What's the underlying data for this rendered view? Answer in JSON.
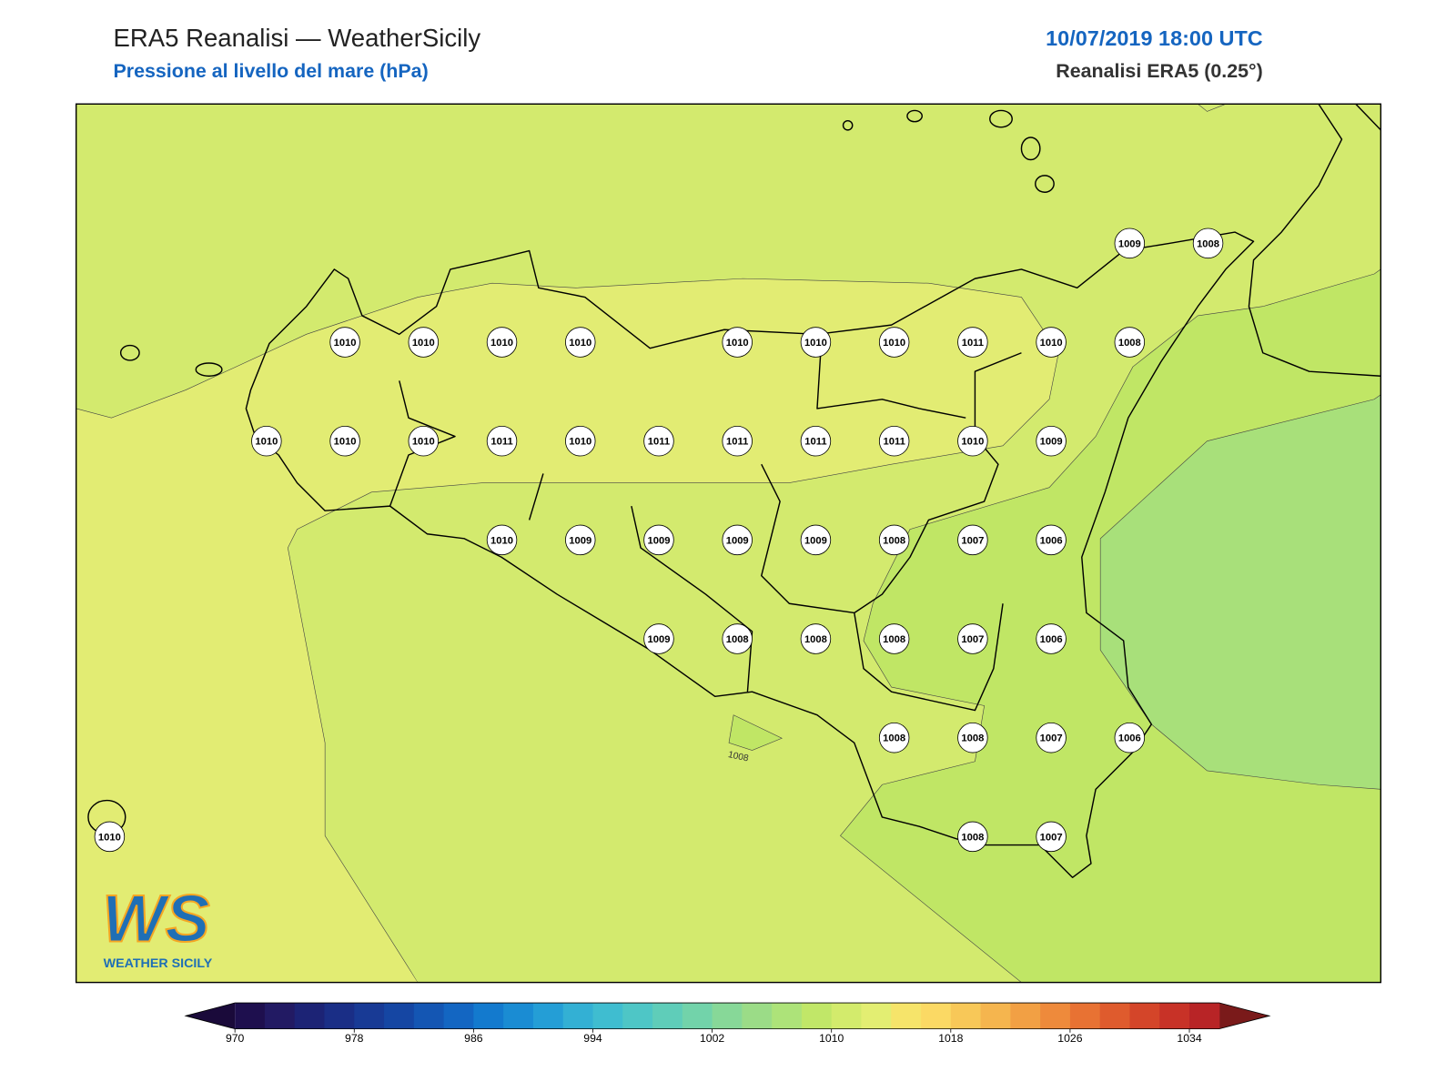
{
  "header": {
    "title": "ERA5 Reanalisi — WeatherSicily",
    "subtitle": "Pressione al livello del mare (hPa)",
    "date": "10/07/2019 18:00 UTC",
    "source": "Reanalisi ERA5 (0.25°)"
  },
  "map": {
    "grid": [
      [
        null,
        null,
        null,
        null,
        null,
        null,
        null,
        null,
        null,
        null,
        null,
        null,
        null,
        1009,
        1008
      ],
      [
        null,
        null,
        null,
        1010,
        1010,
        1010,
        1010,
        null,
        1010,
        1010,
        1010,
        1011,
        1010,
        1008,
        null
      ],
      [
        null,
        null,
        1010,
        1010,
        1010,
        1011,
        1010,
        1011,
        1011,
        1011,
        1011,
        1010,
        1009,
        null,
        null
      ],
      [
        null,
        null,
        null,
        null,
        null,
        1010,
        1009,
        1009,
        1009,
        1009,
        1008,
        1007,
        1006,
        null,
        null
      ],
      [
        null,
        null,
        null,
        null,
        null,
        null,
        null,
        1009,
        1008,
        1008,
        1008,
        1007,
        1006,
        null,
        null
      ],
      [
        null,
        null,
        null,
        null,
        null,
        null,
        null,
        null,
        null,
        null,
        1008,
        1008,
        1007,
        1006,
        null
      ],
      [
        1010,
        null,
        null,
        null,
        null,
        null,
        null,
        null,
        null,
        null,
        null,
        1008,
        1007,
        null,
        null
      ]
    ],
    "contour_label": "1008",
    "logo": {
      "mark": "WS",
      "name": "WEATHER SICILY"
    }
  },
  "colorbar": {
    "lim": [
      970,
      1036
    ],
    "ticks": [
      970,
      978,
      986,
      994,
      1002,
      1010,
      1018,
      1026,
      1034
    ],
    "colors": [
      "#1e0f4e",
      "#221a63",
      "#1c2375",
      "#1a2e86",
      "#183a95",
      "#1546a3",
      "#1456b3",
      "#1366c2",
      "#137ace",
      "#1a8cd3",
      "#249ed6",
      "#33b0d4",
      "#3fbdd0",
      "#4ec6c6",
      "#5fcdb9",
      "#72d3aa",
      "#87d898",
      "#9bdc87",
      "#ade379",
      "#c1e768",
      "#d3eb6c",
      "#e3ee72",
      "#f6e46a",
      "#fbd964",
      "#f8c858",
      "#f5b54e",
      "#f2a044",
      "#ee8a3b",
      "#e87233",
      "#df5b2d",
      "#d44529",
      "#c83227",
      "#b82426"
    ],
    "under_color": "#1a0a3a",
    "over_color": "#7a1a1a"
  }
}
